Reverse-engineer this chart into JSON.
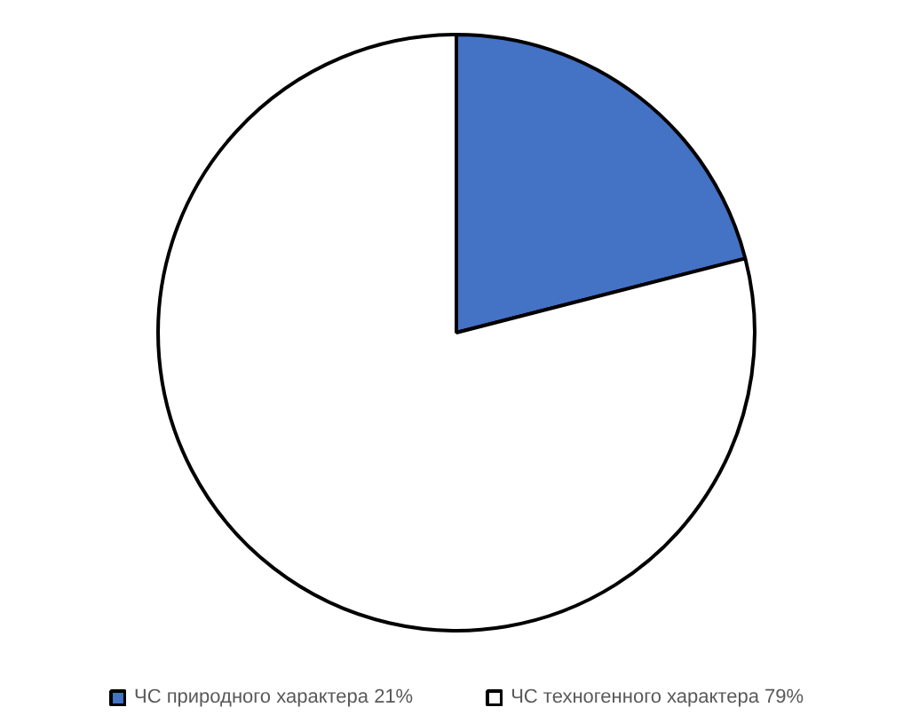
{
  "chart_data": {
    "type": "pie",
    "categories": [
      "ЧС природного характера 21%",
      "ЧС техногенного характера 79%"
    ],
    "values": [
      21,
      79
    ],
    "colors": [
      "#4472c4",
      "#ffffff"
    ],
    "legend": "bottom"
  }
}
